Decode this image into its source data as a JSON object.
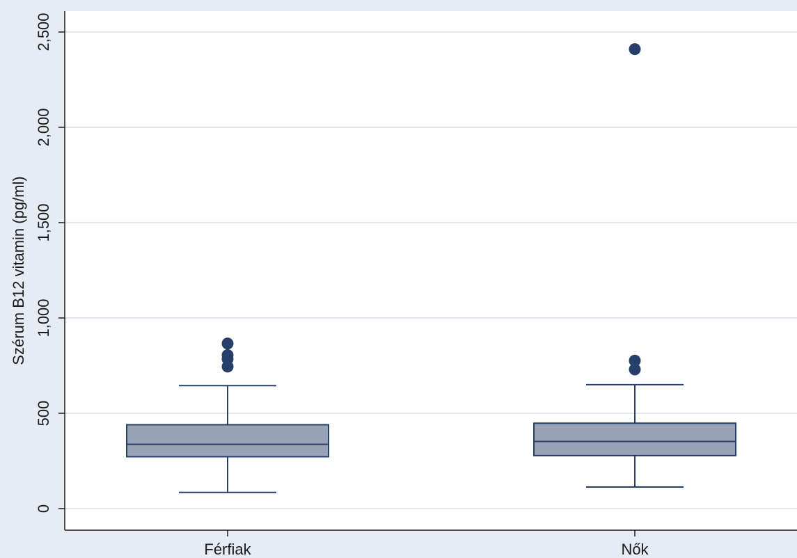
{
  "chart_data": {
    "type": "box",
    "title": "",
    "xlabel": "",
    "ylabel": "Szérum B12 vitamin (pg/ml)",
    "ylim": [
      -100,
      2620
    ],
    "yticks": [
      0,
      500,
      1000,
      1500,
      2000,
      2500
    ],
    "ytick_labels": [
      "0",
      "500",
      "1,000",
      "1,500",
      "2,000",
      "2,500"
    ],
    "grid": true,
    "categories": [
      "Férfiak",
      "Nők"
    ],
    "boxes": [
      {
        "category": "Férfiak",
        "whisker_low": 85,
        "q1": 272,
        "median": 337,
        "q3": 440,
        "whisker_high": 645,
        "outliers": [
          745,
          785,
          805,
          866
        ]
      },
      {
        "category": "Nők",
        "whisker_low": 113,
        "q1": 278,
        "median": 352,
        "q3": 448,
        "whisker_high": 650,
        "outliers": [
          730,
          776,
          2410
        ]
      }
    ],
    "colors": {
      "background": "#e7ebf3",
      "plot_area": "#ffffff",
      "gridline": "#e2e7f0",
      "box_fill": "#98a3b8",
      "box_stroke": "#263e6a",
      "outlier": "#263e6a",
      "axis": "#1a1a1a"
    }
  }
}
